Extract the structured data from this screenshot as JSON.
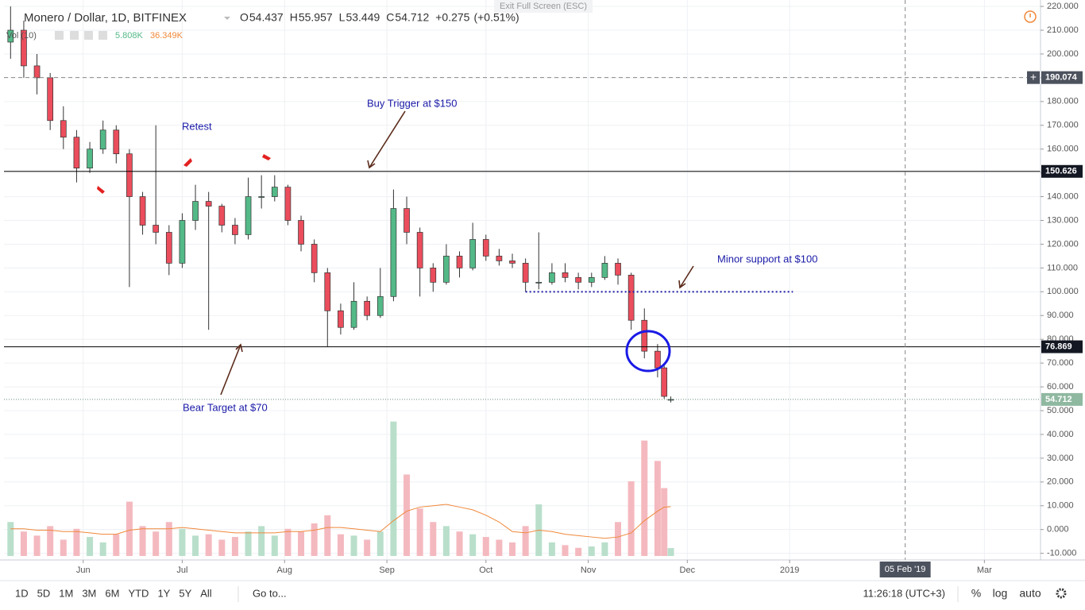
{
  "header": {
    "exit_fullscreen": "Exit Full Screen (ESC)"
  },
  "chart_data": {
    "type": "candlestick",
    "title": "Monero / Dollar, 1D, BITFINEX",
    "ohlc_letters": [
      "O",
      "H",
      "L",
      "C"
    ],
    "change": "+0.275",
    "change_pct": "(+0.51%)",
    "volume_label": "Vol (10)",
    "volume_legend_labels": [
      "5.808K",
      "36.349K"
    ],
    "x": [
      0,
      4,
      8,
      12,
      16,
      20,
      24,
      28,
      32,
      36,
      40,
      44,
      48,
      52,
      56,
      60,
      64,
      68,
      72,
      76,
      80,
      84,
      88,
      92,
      96,
      100,
      104,
      108,
      112,
      116,
      120,
      124,
      128,
      132,
      136,
      140,
      144,
      148,
      152,
      156,
      160,
      164,
      168,
      172,
      176,
      180,
      184,
      188,
      192,
      196,
      198,
      200
    ],
    "open": [
      205,
      210,
      195,
      190,
      172,
      165,
      152,
      160,
      168,
      158,
      140,
      128,
      125,
      112,
      130,
      138,
      136,
      128,
      124,
      140,
      140,
      144,
      130,
      120,
      108,
      92,
      85,
      96,
      90,
      98,
      135,
      125,
      110,
      104,
      115,
      110,
      122,
      115,
      113,
      112,
      104,
      104,
      108,
      106,
      104,
      106,
      112,
      107,
      88,
      75,
      68,
      54.437
    ],
    "high": [
      220,
      214,
      200,
      192,
      178,
      168,
      163,
      172,
      170,
      160,
      142,
      170,
      128,
      133,
      145,
      142,
      137,
      131,
      148,
      149,
      149,
      145,
      132,
      122,
      110,
      95,
      104,
      98,
      110,
      143,
      140,
      127,
      112,
      120,
      117,
      129,
      124,
      118,
      116,
      114,
      125,
      112,
      112,
      108,
      108,
      115,
      114,
      108,
      93,
      78,
      69,
      55.957
    ],
    "low": [
      198,
      190,
      183,
      168,
      160,
      146,
      150,
      158,
      154,
      102,
      124,
      120,
      107,
      110,
      126,
      84,
      125,
      120,
      122,
      135,
      138,
      128,
      117,
      104,
      77,
      82,
      84,
      88,
      89,
      96,
      120,
      98,
      100,
      103,
      106,
      109,
      113,
      111,
      110,
      100,
      101,
      103,
      104,
      101,
      102,
      105,
      103,
      84,
      72,
      64,
      55,
      53.449
    ],
    "close": [
      210,
      195,
      190,
      172,
      165,
      152,
      160,
      168,
      158,
      140,
      128,
      125,
      112,
      130,
      138,
      136,
      128,
      124,
      140,
      140,
      144,
      130,
      120,
      108,
      92,
      85,
      96,
      90,
      98,
      135,
      125,
      110,
      104,
      115,
      110,
      122,
      115,
      113,
      112,
      104,
      104,
      108,
      106,
      104,
      106,
      112,
      107,
      88,
      75,
      68,
      56,
      54.712
    ],
    "volume": [
      25,
      18,
      15,
      22,
      12,
      20,
      14,
      10,
      16,
      40,
      22,
      18,
      25,
      20,
      15,
      16,
      12,
      14,
      18,
      22,
      15,
      20,
      18,
      24,
      30,
      16,
      15,
      12,
      18,
      99,
      60,
      35,
      25,
      22,
      18,
      16,
      14,
      12,
      10,
      22,
      38,
      10,
      8,
      6,
      7,
      10,
      25,
      55,
      85,
      70,
      50,
      5.808
    ],
    "volume_ma": [
      20,
      20,
      19,
      19,
      18,
      18,
      17,
      16,
      16,
      19,
      20,
      20,
      20,
      21,
      20,
      19,
      18,
      17,
      17,
      17,
      17,
      18,
      18,
      19,
      21,
      21,
      20,
      19,
      18,
      26,
      33,
      36,
      37,
      38,
      36,
      34,
      30,
      25,
      18,
      17,
      19,
      18,
      16,
      15,
      14,
      13,
      14,
      17,
      26,
      33,
      36,
      36.349
    ],
    "xlim": [
      -2,
      312
    ],
    "xticks": [
      {
        "value": 22,
        "label": "Jun"
      },
      {
        "value": 52,
        "label": "Jul"
      },
      {
        "value": 83,
        "label": "Aug"
      },
      {
        "value": 114,
        "label": "Sep"
      },
      {
        "value": 144,
        "label": "Oct"
      },
      {
        "value": 175,
        "label": "Nov"
      },
      {
        "value": 205,
        "label": "Dec"
      },
      {
        "value": 236,
        "label": "2019"
      },
      {
        "value": 295,
        "label": "Mar"
      }
    ],
    "ylim": [
      -12.8,
      222.7
    ],
    "yticks": [
      {
        "value": 220,
        "label": "220.000"
      },
      {
        "value": 210,
        "label": "210.000"
      },
      {
        "value": 200,
        "label": "200.000"
      },
      {
        "value": 190,
        "label": "190.000"
      },
      {
        "value": 180,
        "label": "180.000"
      },
      {
        "value": 170,
        "label": "170.000"
      },
      {
        "value": 160,
        "label": "160.000"
      },
      {
        "value": 150,
        "label": "150.000"
      },
      {
        "value": 140,
        "label": "140.000"
      },
      {
        "value": 130,
        "label": "130.000"
      },
      {
        "value": 120,
        "label": "120.000"
      },
      {
        "value": 110,
        "label": "110.000"
      },
      {
        "value": 100,
        "label": "100.000"
      },
      {
        "value": 90,
        "label": "90.000"
      },
      {
        "value": 80,
        "label": "80.000"
      },
      {
        "value": 70,
        "label": "70.000"
      },
      {
        "value": 60,
        "label": "60.000"
      },
      {
        "value": 50,
        "label": "50.000"
      },
      {
        "value": 40,
        "label": "40.000"
      },
      {
        "value": 30,
        "label": "30.000"
      },
      {
        "value": 20,
        "label": "20.000"
      },
      {
        "value": 10,
        "label": "10.000"
      },
      {
        "value": 0,
        "label": "0.000"
      },
      {
        "value": -10,
        "label": "-10.000"
      }
    ],
    "hlines": [
      150.626,
      76.869
    ],
    "crosshair": {
      "y": 190.074,
      "x": 271,
      "x_label": "05 Feb '19"
    },
    "support": {
      "value": 100,
      "x": [
        156,
        237
      ]
    },
    "annotations": [
      "Retest",
      "Buy Trigger at $150",
      "Minor support at $100",
      "Bear Target at $70"
    ],
    "colors": {
      "up": "#53b987",
      "down": "#eb4d5c",
      "volume_up": "#b9dfcb",
      "volume_down": "#f4b9bf",
      "volume_ma": "#f0883a",
      "annotation": "#1a1aa8"
    }
  },
  "toolbar": {
    "ranges": [
      "1D",
      "5D",
      "1M",
      "3M",
      "6M",
      "YTD",
      "1Y",
      "5Y",
      "All"
    ],
    "goto": "Go to...",
    "time": "11:26:18 (UTC+3)",
    "options": [
      "%",
      "log",
      "auto"
    ]
  }
}
